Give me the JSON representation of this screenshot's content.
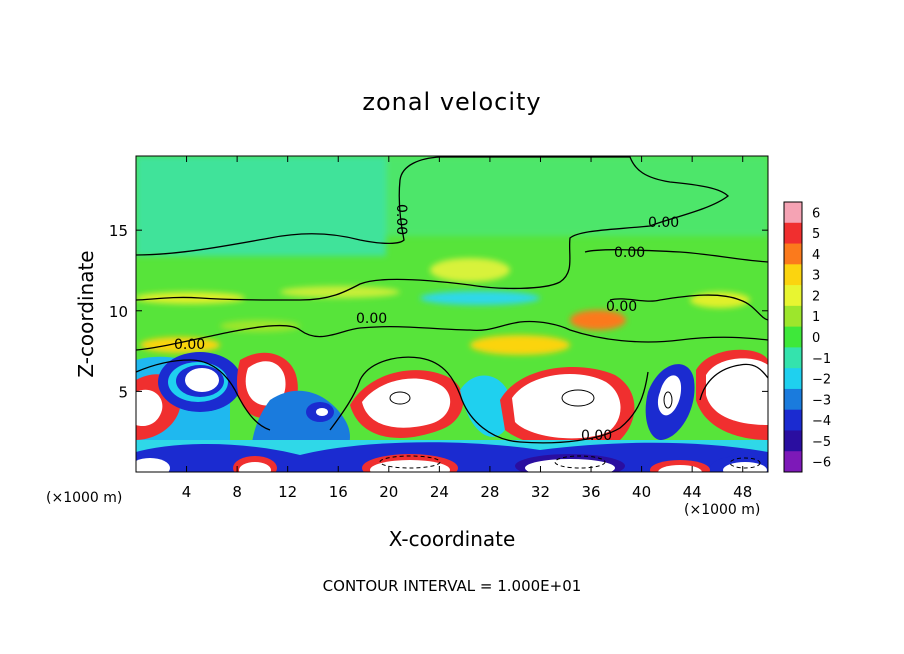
{
  "chart_data": {
    "type": "heatmap",
    "title": "zonal velocity",
    "xlabel": "X-coordinate",
    "ylabel": "Z-coordinate",
    "x_unit_left": "(×1000 m)",
    "x_unit_right": "(×1000 m)",
    "footnote": "CONTOUR INTERVAL = 1.000E+01",
    "xlim": [
      0,
      50
    ],
    "ylim": [
      0,
      19.6
    ],
    "x_ticks": [
      "4",
      "8",
      "12",
      "16",
      "20",
      "24",
      "28",
      "32",
      "36",
      "40",
      "44",
      "48"
    ],
    "y_ticks": [
      "5",
      "10",
      "15"
    ],
    "colorbar": {
      "min": -6,
      "max": 6,
      "tick_labels": [
        "6",
        "5",
        "4",
        "3",
        "2",
        "1",
        "0",
        "−1",
        "−2",
        "−3",
        "−4",
        "−5",
        "−6"
      ],
      "colors": [
        "#f5a3b4",
        "#f02f2f",
        "#fb7a1c",
        "#fbd40f",
        "#e8f531",
        "#9de62c",
        "#3ee83a",
        "#34e3ad",
        "#1fd0ef",
        "#1a7bdd",
        "#1b2bd0",
        "#2a0ea0",
        "#7d19b8"
      ]
    },
    "contour_labels": [
      "0.00",
      "0.00",
      "0.00",
      "0.00",
      "0.00",
      "0.00",
      "0.00"
    ],
    "features": [
      {
        "x": 5.5,
        "z": 6.0,
        "u": -6
      },
      {
        "x": 9.5,
        "z": 5.5,
        "u": 6
      },
      {
        "x": 1.5,
        "z": 2.5,
        "u": 6
      },
      {
        "x": 14.5,
        "z": 4.5,
        "u": -5
      },
      {
        "x": 21.5,
        "z": 4.5,
        "u": 6
      },
      {
        "x": 35,
        "z": 4.5,
        "u": 6
      },
      {
        "x": 42,
        "z": 4.5,
        "u": -6
      },
      {
        "x": 47,
        "z": 5.0,
        "u": 6
      },
      {
        "x": 9.5,
        "z": 0.5,
        "u": 6
      },
      {
        "x": 21,
        "z": 0.6,
        "u": 6
      },
      {
        "x": 35,
        "z": 1.0,
        "u": -6
      },
      {
        "x": 27,
        "z": 12.5,
        "u": 2
      },
      {
        "x": 35,
        "z": 9.5,
        "u": 3
      },
      {
        "x": 29,
        "z": 10.5,
        "u": -2
      },
      {
        "x": 3,
        "z": 17,
        "u": -1
      }
    ]
  }
}
